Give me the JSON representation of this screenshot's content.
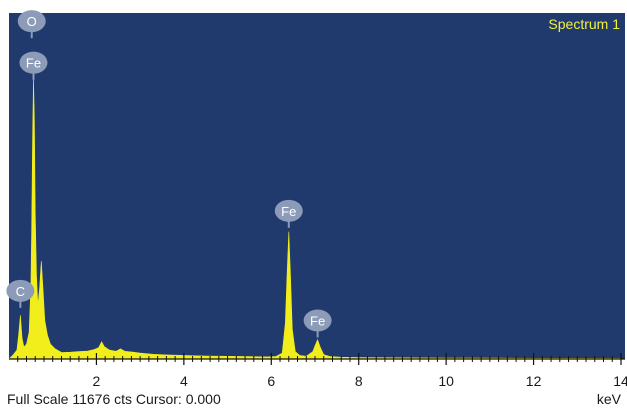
{
  "chart_data": {
    "type": "area",
    "series_label": "Spectrum 1",
    "xlabel": "keV",
    "xlim": [
      0,
      14
    ],
    "ylim": [
      0,
      11676
    ],
    "x_ticks": [
      2,
      4,
      6,
      8,
      10,
      12,
      14
    ],
    "footer": "Full Scale 11676 cts Cursor: 0.000",
    "colors": {
      "plot_bg": "#213a6e",
      "spectrum": "#f2ee1c",
      "label_bubble": "#8b9bb8",
      "title": "#f4f13a"
    },
    "spectrum": [
      [
        0.0,
        0
      ],
      [
        0.1,
        150
      ],
      [
        0.18,
        300
      ],
      [
        0.22,
        800
      ],
      [
        0.26,
        1480
      ],
      [
        0.3,
        700
      ],
      [
        0.34,
        400
      ],
      [
        0.4,
        500
      ],
      [
        0.46,
        900
      ],
      [
        0.5,
        2500
      ],
      [
        0.52,
        4500
      ],
      [
        0.54,
        7500
      ],
      [
        0.56,
        9500
      ],
      [
        0.58,
        8000
      ],
      [
        0.6,
        5000
      ],
      [
        0.63,
        2800
      ],
      [
        0.66,
        1800
      ],
      [
        0.7,
        2400
      ],
      [
        0.74,
        3300
      ],
      [
        0.78,
        2300
      ],
      [
        0.82,
        1300
      ],
      [
        0.88,
        800
      ],
      [
        0.95,
        500
      ],
      [
        1.05,
        350
      ],
      [
        1.2,
        220
      ],
      [
        1.4,
        230
      ],
      [
        1.6,
        250
      ],
      [
        1.8,
        270
      ],
      [
        1.95,
        320
      ],
      [
        2.05,
        380
      ],
      [
        2.12,
        580
      ],
      [
        2.18,
        420
      ],
      [
        2.3,
        300
      ],
      [
        2.45,
        260
      ],
      [
        2.55,
        340
      ],
      [
        2.65,
        260
      ],
      [
        2.8,
        240
      ],
      [
        3.0,
        200
      ],
      [
        3.3,
        160
      ],
      [
        3.6,
        140
      ],
      [
        4.0,
        120
      ],
      [
        4.5,
        100
      ],
      [
        5.0,
        90
      ],
      [
        5.5,
        80
      ],
      [
        5.9,
        70
      ],
      [
        6.1,
        80
      ],
      [
        6.25,
        200
      ],
      [
        6.32,
        1200
      ],
      [
        6.36,
        2800
      ],
      [
        6.4,
        4300
      ],
      [
        6.44,
        2800
      ],
      [
        6.48,
        1000
      ],
      [
        6.55,
        250
      ],
      [
        6.65,
        120
      ],
      [
        6.8,
        90
      ],
      [
        6.95,
        250
      ],
      [
        7.0,
        450
      ],
      [
        7.06,
        650
      ],
      [
        7.12,
        400
      ],
      [
        7.2,
        150
      ],
      [
        7.35,
        80
      ],
      [
        7.6,
        60
      ],
      [
        8.0,
        50
      ],
      [
        9.0,
        40
      ],
      [
        10.0,
        35
      ],
      [
        11.0,
        30
      ],
      [
        12.0,
        25
      ],
      [
        13.0,
        22
      ],
      [
        14.0,
        20
      ]
    ],
    "peak_labels": [
      {
        "text": "O",
        "x": 0.52,
        "y": 11400
      },
      {
        "text": "Fe",
        "x": 0.56,
        "y": 10000
      },
      {
        "text": "C",
        "x": 0.26,
        "y": 2300
      },
      {
        "text": "Fe",
        "x": 6.4,
        "y": 5000
      },
      {
        "text": "Fe",
        "x": 7.06,
        "y": 1300
      }
    ]
  }
}
